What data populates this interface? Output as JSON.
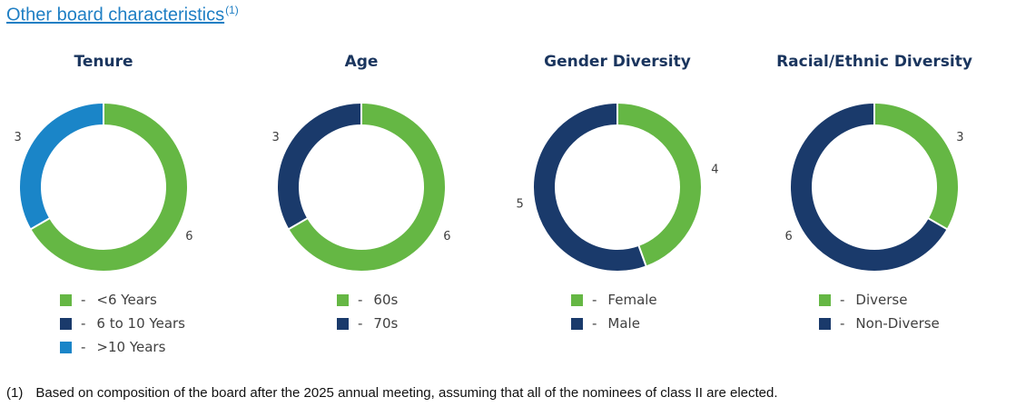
{
  "header": {
    "title": "Other board characteristics",
    "superscript": "(1)"
  },
  "colors": {
    "green": "#65b744",
    "navy": "#1a3a6b",
    "blue": "#1a85c8"
  },
  "chart_data": [
    {
      "type": "pie",
      "title": "Tenure",
      "donut": true,
      "slices": [
        {
          "label": "<6 Years",
          "value": 6,
          "color": "#65b744"
        },
        {
          "label": "6 to 10 Years",
          "value": 0,
          "color": "#1a3a6b"
        },
        {
          "label": ">10 Years",
          "value": 3,
          "color": "#1a85c8"
        }
      ]
    },
    {
      "type": "pie",
      "title": "Age",
      "donut": true,
      "slices": [
        {
          "label": "60s",
          "value": 6,
          "color": "#65b744"
        },
        {
          "label": "70s",
          "value": 3,
          "color": "#1a3a6b"
        }
      ]
    },
    {
      "type": "pie",
      "title": "Gender Diversity",
      "donut": true,
      "slices": [
        {
          "label": "Female",
          "value": 4,
          "color": "#65b744"
        },
        {
          "label": "Male",
          "value": 5,
          "color": "#1a3a6b"
        }
      ]
    },
    {
      "type": "pie",
      "title": "Racial/Ethnic Diversity",
      "donut": true,
      "slices": [
        {
          "label": "Diverse",
          "value": 3,
          "color": "#65b744"
        },
        {
          "label": "Non-Diverse",
          "value": 6,
          "color": "#1a3a6b"
        }
      ]
    }
  ],
  "footnote": {
    "marker": "(1)",
    "text": "Based on composition of the board after the 2025 annual meeting, assuming that all of the nominees of class II are elected."
  }
}
